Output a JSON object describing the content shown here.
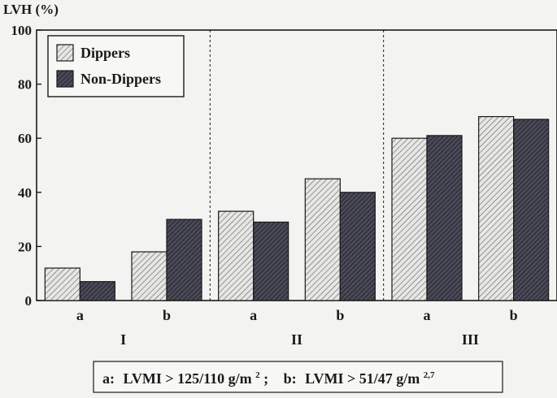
{
  "chart_data": {
    "type": "bar",
    "ylabel": "LVH (%)",
    "ylim": [
      0,
      100
    ],
    "yticks": [
      "0",
      "20",
      "40",
      "60",
      "80",
      "100"
    ],
    "groups": [
      "I",
      "II",
      "III"
    ],
    "categories": [
      "a",
      "b",
      "a",
      "b",
      "a",
      "b"
    ],
    "series": [
      {
        "name": "Dippers",
        "values": [
          12,
          18,
          33,
          45,
          60,
          68
        ]
      },
      {
        "name": "Non-Dippers",
        "values": [
          7,
          30,
          29,
          40,
          61,
          67
        ]
      }
    ],
    "legend_position": "top-left",
    "grid": false,
    "group_separators": "dashed",
    "footnote": {
      "a_label": "a:",
      "a_text": "LVMI > 125/110 g/m",
      "a_sup": "2",
      "a_end": ";",
      "b_label": "b:",
      "b_text": "LVMI > 51/47 g/m",
      "b_sup": "2,7"
    },
    "colors": {
      "dippers_fill": "#e6e6e4",
      "non_dippers_fill": "#4a4a58",
      "axis": "#1a1a1a"
    }
  }
}
